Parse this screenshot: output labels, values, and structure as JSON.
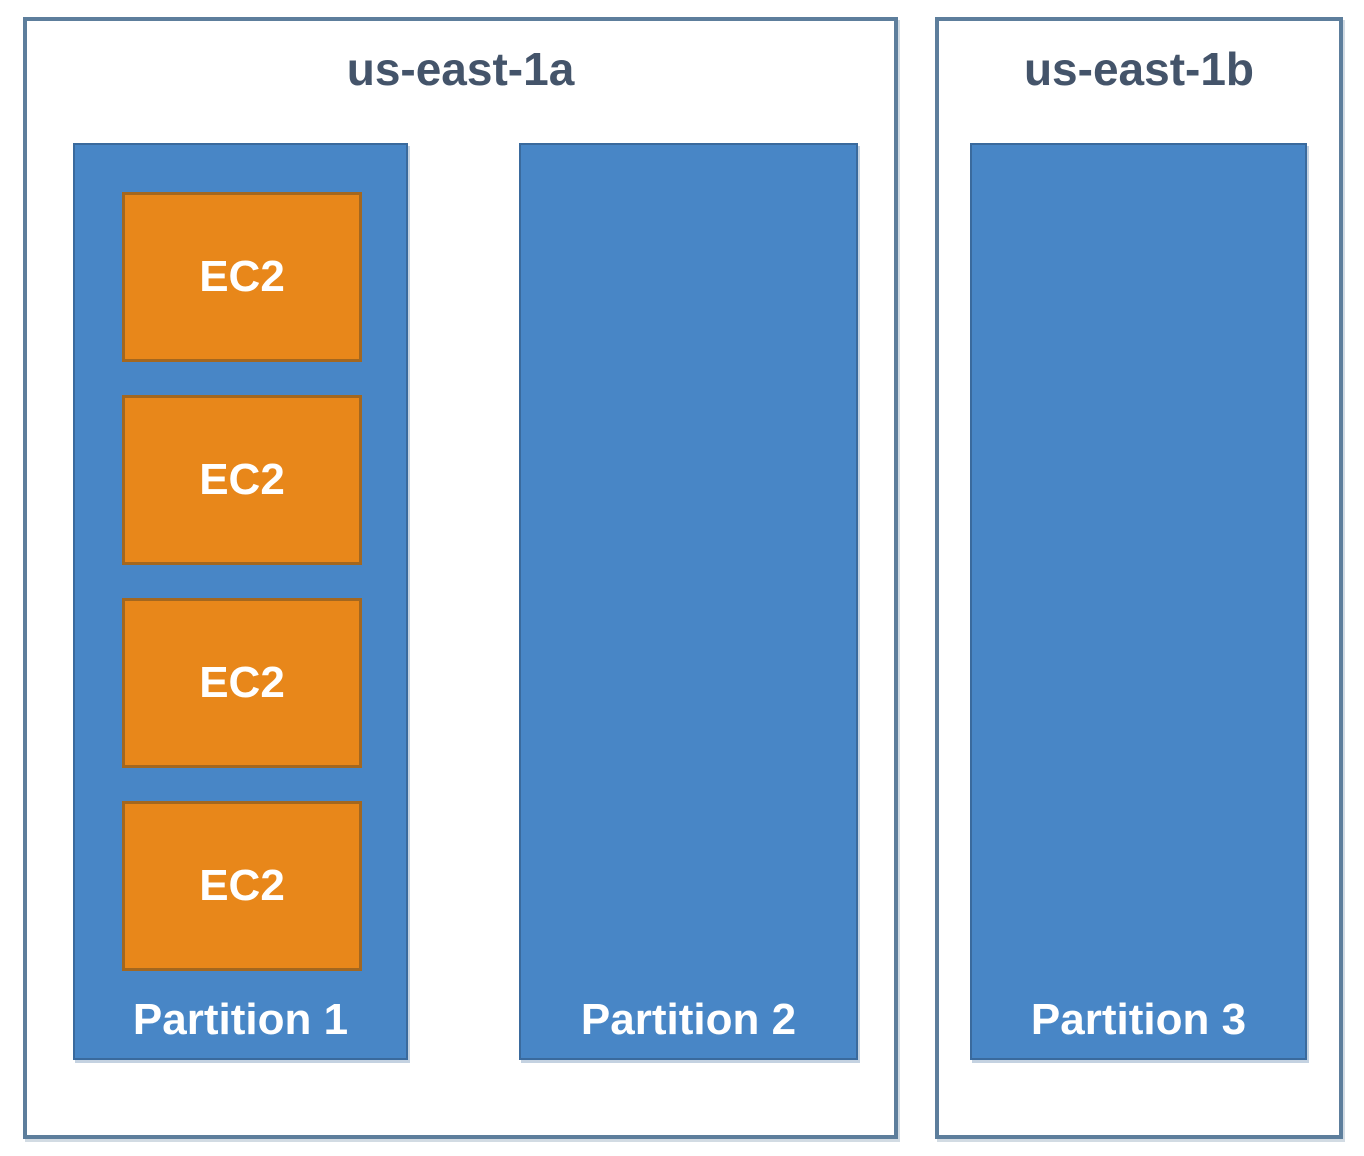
{
  "diagram": {
    "azs": [
      {
        "name": "us-east-1a",
        "partitions": [
          {
            "label": "Partition 1",
            "instances": [
              "EC2",
              "EC2",
              "EC2",
              "EC2"
            ]
          },
          {
            "label": "Partition 2",
            "instances": []
          }
        ]
      },
      {
        "name": "us-east-1b",
        "partitions": [
          {
            "label": "Partition 3",
            "instances": []
          }
        ]
      }
    ]
  },
  "colors": {
    "az_border": "#5d7e9c",
    "az_title_text": "#44546a",
    "partition_fill": "#4886c6",
    "partition_border": "#3a6a9d",
    "instance_fill": "#e8871a",
    "instance_border": "#a3671f",
    "label_text": "#ffffff"
  }
}
